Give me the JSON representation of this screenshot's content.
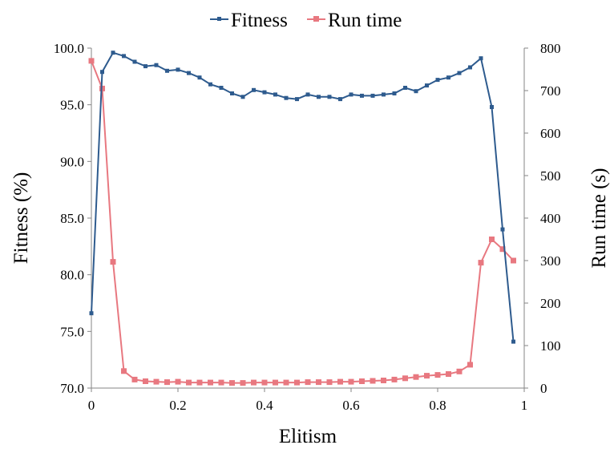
{
  "chart_data": {
    "type": "line",
    "title": "",
    "xlabel": "Elitism",
    "ylabel_left": "Fitness (%)",
    "ylabel_right": "Run time (s)",
    "xlim": [
      0,
      1
    ],
    "ylim_left": [
      70,
      100
    ],
    "ylim_right": [
      0,
      800
    ],
    "x_ticks": [
      "0",
      "0.2",
      "0.4",
      "0.6",
      "0.8",
      "1"
    ],
    "y_left_ticks": [
      "70.0",
      "75.0",
      "80.0",
      "85.0",
      "90.0",
      "95.0",
      "100.0"
    ],
    "y_right_ticks": [
      "0",
      "100",
      "200",
      "300",
      "400",
      "500",
      "600",
      "700",
      "800"
    ],
    "legend_position": "top",
    "grid": false,
    "x": [
      0,
      0.025,
      0.05,
      0.075,
      0.1,
      0.125,
      0.15,
      0.175,
      0.2,
      0.225,
      0.25,
      0.275,
      0.3,
      0.325,
      0.35,
      0.375,
      0.4,
      0.425,
      0.45,
      0.475,
      0.5,
      0.525,
      0.55,
      0.575,
      0.6,
      0.625,
      0.65,
      0.675,
      0.7,
      0.725,
      0.75,
      0.775,
      0.8,
      0.825,
      0.85,
      0.875,
      0.9,
      0.925,
      0.95,
      0.975
    ],
    "series": [
      {
        "name": "Fitness",
        "axis": "left",
        "color": "#2e5b8e",
        "marker": "diamond",
        "values": [
          76.6,
          97.9,
          99.6,
          99.3,
          98.8,
          98.4,
          98.5,
          98.0,
          98.1,
          97.8,
          97.4,
          96.8,
          96.5,
          96.0,
          95.7,
          96.3,
          96.1,
          95.9,
          95.6,
          95.5,
          95.9,
          95.7,
          95.7,
          95.5,
          95.9,
          95.8,
          95.8,
          95.9,
          96.0,
          96.5,
          96.2,
          96.7,
          97.2,
          97.4,
          97.8,
          98.3,
          99.1,
          94.8,
          84.0,
          74.1
        ]
      },
      {
        "name": "Run time",
        "axis": "right",
        "color": "#e87880",
        "marker": "square",
        "values": [
          770,
          705,
          297,
          40,
          20,
          16,
          15,
          14,
          15,
          13,
          13,
          13,
          13,
          12,
          12,
          13,
          13,
          13,
          13,
          13,
          14,
          14,
          14,
          15,
          15,
          16,
          17,
          18,
          20,
          23,
          26,
          29,
          31,
          33,
          39,
          55,
          295,
          350,
          327,
          300
        ]
      }
    ]
  }
}
